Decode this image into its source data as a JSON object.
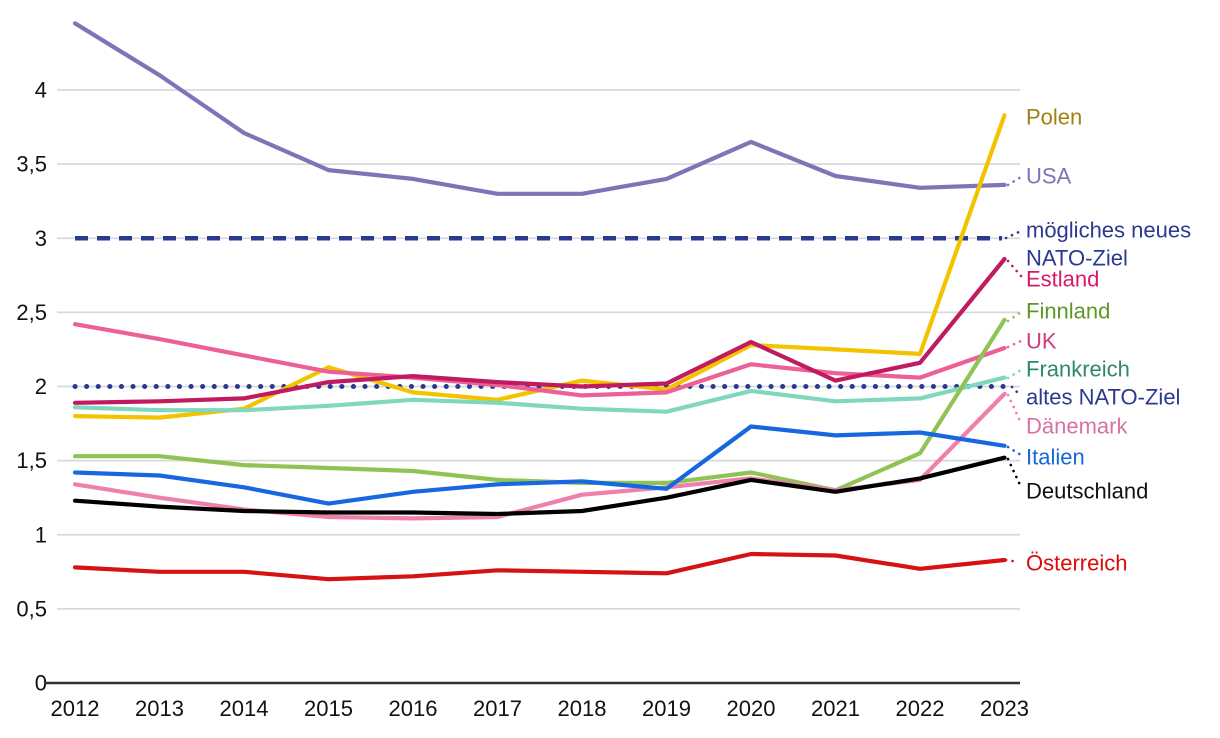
{
  "chart_data": {
    "type": "line",
    "title": "",
    "x_label": "",
    "y_label": "",
    "x": [
      2012,
      2013,
      2014,
      2015,
      2016,
      2017,
      2018,
      2019,
      2020,
      2021,
      2022,
      2023
    ],
    "x_tick_labels": [
      "2012",
      "2013",
      "2014",
      "2015",
      "2016",
      "2017",
      "2018",
      "2019",
      "2020",
      "2021",
      "2022",
      "2023"
    ],
    "y_axis": {
      "tick_values": [
        0,
        0.5,
        1,
        1.5,
        2,
        2.5,
        3,
        3.5,
        4
      ],
      "tick_labels": [
        "0",
        "0,5",
        "1",
        "1,5",
        "2",
        "2,5",
        "3",
        "3,5",
        "4"
      ],
      "range": [
        0,
        4.5
      ],
      "grid": true,
      "grid_color": "#d9d9d9",
      "axis_color": "#2f2f2f"
    },
    "legend_position": "right-labels",
    "series": [
      {
        "id": "polen",
        "label": "Polen",
        "style": "solid",
        "line_color": "#f3c300",
        "label_color": "#a17f10",
        "values": [
          1.8,
          1.79,
          1.85,
          2.13,
          1.96,
          1.91,
          2.04,
          1.98,
          2.28,
          2.25,
          2.22,
          3.83
        ]
      },
      {
        "id": "usa",
        "label": "USA",
        "style": "solid",
        "line_color": "#7b76b5",
        "label_color": "#7b76b5",
        "values": [
          4.45,
          4.1,
          3.71,
          3.46,
          3.4,
          3.3,
          3.3,
          3.4,
          3.65,
          3.42,
          3.34,
          3.36
        ]
      },
      {
        "id": "target_new",
        "label": "mögliches neues NATO-Ziel",
        "label_lines": [
          "mögliches neues",
          "NATO-Ziel"
        ],
        "style": "dashed",
        "line_color": "#2b3a8f",
        "label_color": "#2b3a8f",
        "value": 3.0
      },
      {
        "id": "estland",
        "label": "Estland",
        "style": "solid",
        "line_color": "#c01a61",
        "label_color": "#d6196b",
        "values": [
          1.89,
          1.9,
          1.92,
          2.03,
          2.07,
          2.03,
          2.0,
          2.02,
          2.3,
          2.04,
          2.16,
          2.86
        ]
      },
      {
        "id": "finnland",
        "label": "Finnland",
        "style": "solid",
        "line_color": "#8fc455",
        "label_color": "#5f9722",
        "values": [
          1.53,
          1.53,
          1.47,
          1.45,
          1.43,
          1.37,
          1.35,
          1.35,
          1.42,
          1.3,
          1.55,
          2.45
        ]
      },
      {
        "id": "uk",
        "label": "UK",
        "style": "solid",
        "line_color": "#ec5f97",
        "label_color": "#cf3d79",
        "values": [
          2.42,
          2.32,
          2.21,
          2.1,
          2.06,
          2.01,
          1.94,
          1.96,
          2.15,
          2.09,
          2.06,
          2.26
        ]
      },
      {
        "id": "frankreich",
        "label": "Frankreich",
        "style": "solid",
        "line_color": "#7fd8be",
        "label_color": "#2f8671",
        "values": [
          1.86,
          1.84,
          1.84,
          1.87,
          1.91,
          1.89,
          1.85,
          1.83,
          1.97,
          1.9,
          1.92,
          2.06
        ]
      },
      {
        "id": "target_old",
        "label": "altes NATO-Ziel",
        "style": "dotted",
        "line_color": "#2b3a8f",
        "label_color": "#2b3a8f",
        "value": 2.0
      },
      {
        "id": "daenemark",
        "label": "Dänemark",
        "style": "solid",
        "line_color": "#ef80ad",
        "label_color": "#da71a4",
        "values": [
          1.34,
          1.25,
          1.17,
          1.12,
          1.11,
          1.12,
          1.27,
          1.32,
          1.38,
          1.3,
          1.37,
          1.95
        ]
      },
      {
        "id": "italien",
        "label": "Italien",
        "style": "solid",
        "line_color": "#1767e0",
        "label_color": "#1767e0",
        "values": [
          1.42,
          1.4,
          1.32,
          1.21,
          1.29,
          1.34,
          1.36,
          1.31,
          1.73,
          1.67,
          1.69,
          1.6
        ]
      },
      {
        "id": "deutschland",
        "label": "Deutschland",
        "style": "solid",
        "line_color": "#000000",
        "label_color": "#111111",
        "values": [
          1.23,
          1.19,
          1.16,
          1.15,
          1.15,
          1.14,
          1.16,
          1.25,
          1.37,
          1.29,
          1.38,
          1.52
        ]
      },
      {
        "id": "oesterreich",
        "label": "Österreich",
        "style": "solid",
        "line_color": "#d61313",
        "label_color": "#db0b0b",
        "values": [
          0.78,
          0.75,
          0.75,
          0.7,
          0.72,
          0.76,
          0.75,
          0.74,
          0.87,
          0.86,
          0.77,
          0.83
        ]
      }
    ]
  }
}
